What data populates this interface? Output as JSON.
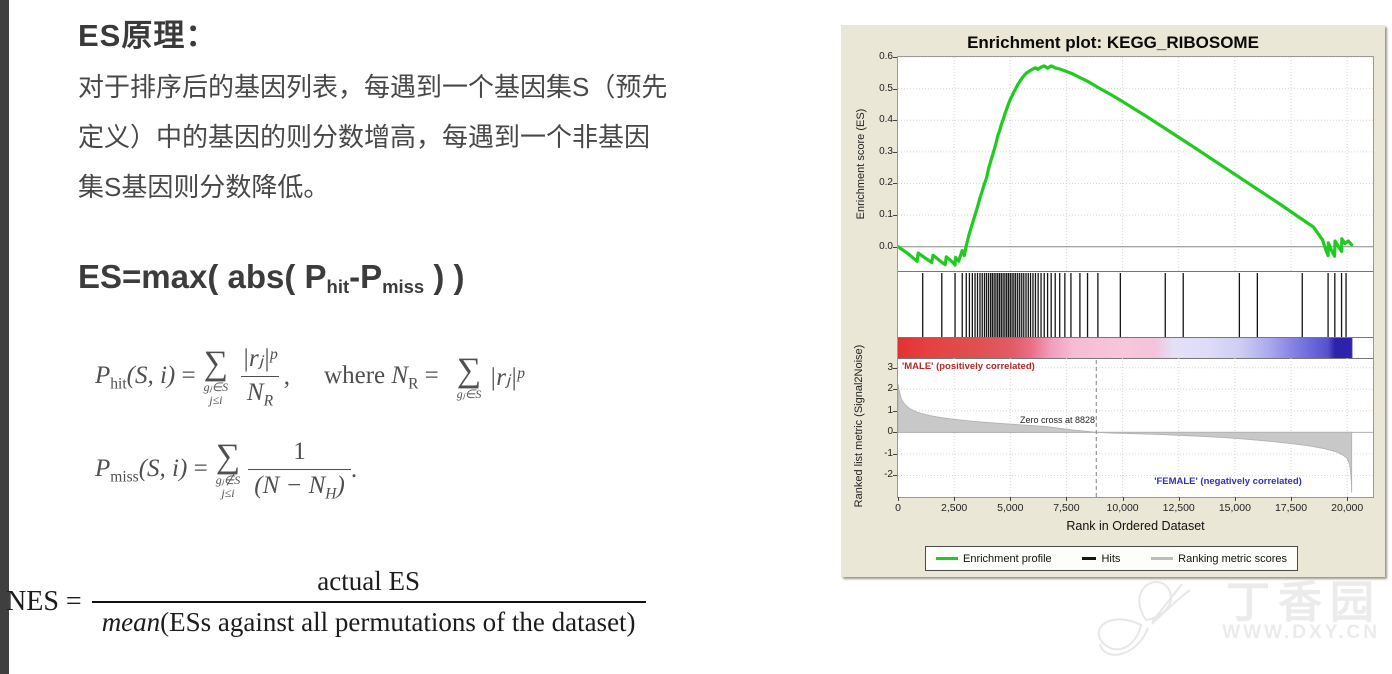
{
  "left": {
    "title": "ES原理：",
    "para_lines": [
      "对于排序后的基因列表，每遇到一个基因集S（预先",
      "定义）中的基因的则分数增高，每遇到一个非基因",
      "集S基因则分数降低。"
    ],
    "es_formula": {
      "p1": "ES=max( abs( P",
      "sub1": "hit",
      "p2": "-P",
      "sub2": "miss",
      "p3": " ) )"
    },
    "phit": {
      "p": "P",
      "sub": "hit",
      "args": "(S, i)",
      "eq": "=",
      "sigma": "∑",
      "sum_under1": "gⱼ∈S",
      "sum_under2": "j≤i",
      "num_base": "|rⱼ|",
      "num_sup": "p",
      "den_base": "N",
      "den_sub": "R",
      "comma": ",",
      "where": "where",
      "nr_base": "N",
      "nr_sub": "R",
      "eq2": "=",
      "sigma2": "∑",
      "sum2_under": "gⱼ∈S",
      "tail_base": "|rⱼ|",
      "tail_sup": "p"
    },
    "pmiss": {
      "p": "P",
      "sub": "miss",
      "args": "(S, i)",
      "eq": "=",
      "sigma": "∑",
      "sum_under1": "gⱼ∉S",
      "sum_under2": "j≤i",
      "num": "1",
      "den_a": "(N − N",
      "den_sub": "H",
      "den_b": ")",
      "period": "."
    },
    "nes": {
      "lhs": "NES =",
      "num": "actual ES",
      "den_italic": "mean",
      "den_rest": "(ESs against all permutations of the dataset)"
    }
  },
  "watermark": {
    "cn": "丁香园",
    "url": "WWW.DXY.CN"
  },
  "chart_data": {
    "type": "line",
    "title": "Enrichment plot: KEGG_RIBOSOME",
    "x_label": "Rank in Ordered Dataset",
    "x_max": 21150,
    "x_tick_ranks": [
      0,
      2500,
      5000,
      7500,
      10000,
      12500,
      15000,
      17500,
      20000
    ],
    "x_tick_labels": [
      "0",
      "2,500",
      "5,000",
      "7,500",
      "10,000",
      "12,500",
      "15,000",
      "17,500",
      "20,000"
    ],
    "es_panel": {
      "y_label": "Enrichment score (ES)",
      "ylim": [
        -0.08,
        0.6
      ],
      "y_tick_values": [
        0.6,
        0.5,
        0.4,
        0.3,
        0.2,
        0.1,
        0.0
      ],
      "y_tick_labels": [
        "0.6",
        "0.5",
        "0.4",
        "0.3",
        "0.2",
        "0.1",
        "0.0"
      ],
      "series": [
        [
          0,
          0
        ],
        [
          250,
          -0.012
        ],
        [
          500,
          -0.025
        ],
        [
          850,
          -0.046
        ],
        [
          900,
          -0.02
        ],
        [
          1150,
          -0.033
        ],
        [
          1500,
          -0.05
        ],
        [
          1560,
          -0.027
        ],
        [
          2000,
          -0.052
        ],
        [
          2100,
          -0.057
        ],
        [
          2150,
          -0.032
        ],
        [
          2450,
          -0.05
        ],
        [
          2540,
          -0.058
        ],
        [
          2560,
          -0.034
        ],
        [
          2700,
          -0.046
        ],
        [
          2860,
          -0.012
        ],
        [
          2950,
          -0.028
        ],
        [
          3040,
          0.004
        ],
        [
          3180,
          0.042
        ],
        [
          3310,
          0.072
        ],
        [
          3430,
          0.1
        ],
        [
          3540,
          0.126
        ],
        [
          3650,
          0.155
        ],
        [
          3750,
          0.176
        ],
        [
          3850,
          0.2
        ],
        [
          3940,
          0.217
        ],
        [
          4030,
          0.246
        ],
        [
          4120,
          0.268
        ],
        [
          4200,
          0.287
        ],
        [
          4280,
          0.306
        ],
        [
          4360,
          0.326
        ],
        [
          4440,
          0.35
        ],
        [
          4520,
          0.366
        ],
        [
          4600,
          0.386
        ],
        [
          4680,
          0.402
        ],
        [
          4760,
          0.42
        ],
        [
          4840,
          0.436
        ],
        [
          4920,
          0.452
        ],
        [
          5000,
          0.466
        ],
        [
          5080,
          0.478
        ],
        [
          5160,
          0.49
        ],
        [
          5240,
          0.5
        ],
        [
          5330,
          0.512
        ],
        [
          5420,
          0.522
        ],
        [
          5510,
          0.532
        ],
        [
          5600,
          0.54
        ],
        [
          5700,
          0.548
        ],
        [
          5800,
          0.553
        ],
        [
          5900,
          0.558
        ],
        [
          6010,
          0.562
        ],
        [
          6120,
          0.566
        ],
        [
          6240,
          0.561
        ],
        [
          6370,
          0.568
        ],
        [
          6510,
          0.572
        ],
        [
          6660,
          0.565
        ],
        [
          6820,
          0.572
        ],
        [
          7000,
          0.566
        ],
        [
          7200,
          0.562
        ],
        [
          7430,
          0.556
        ],
        [
          7700,
          0.549
        ],
        [
          8100,
          0.535
        ],
        [
          8440,
          0.523
        ],
        [
          8900,
          0.504
        ],
        [
          9500,
          0.48
        ],
        [
          10000,
          0.459
        ],
        [
          11000,
          0.415
        ],
        [
          12000,
          0.369
        ],
        [
          13000,
          0.323
        ],
        [
          14000,
          0.276
        ],
        [
          15000,
          0.229
        ],
        [
          16000,
          0.182
        ],
        [
          17000,
          0.135
        ],
        [
          18000,
          0.086
        ],
        [
          18500,
          0.062
        ],
        [
          18900,
          0.022
        ],
        [
          19050,
          -0.01
        ],
        [
          19150,
          -0.028
        ],
        [
          19160,
          0.012
        ],
        [
          19300,
          -0.012
        ],
        [
          19440,
          -0.03
        ],
        [
          19460,
          0.018
        ],
        [
          19600,
          0.002
        ],
        [
          19750,
          -0.015
        ],
        [
          19760,
          0.025
        ],
        [
          19900,
          0.01
        ],
        [
          20050,
          0.018
        ],
        [
          20200,
          0.006
        ]
      ]
    },
    "hits": {
      "ranks": [
        1100,
        1950,
        2540,
        2860,
        3040,
        3180,
        3310,
        3430,
        3540,
        3650,
        3750,
        3850,
        3940,
        4030,
        4120,
        4200,
        4280,
        4360,
        4440,
        4520,
        4600,
        4680,
        4760,
        4840,
        4920,
        5000,
        5080,
        5160,
        5240,
        5330,
        5420,
        5510,
        5600,
        5700,
        5800,
        5900,
        6010,
        6120,
        6240,
        6370,
        6510,
        6660,
        6820,
        7000,
        7200,
        7430,
        7700,
        8100,
        8440,
        8900,
        9900,
        11900,
        12700,
        15200,
        16000,
        18000,
        19150,
        19450,
        19750,
        19950
      ]
    },
    "metric_panel": {
      "y_label": "Ranked list metric (Signal2Noise)",
      "ylim": [
        -3.0,
        3.45
      ],
      "y_tick_values": [
        3,
        2,
        1,
        0,
        -1,
        -2
      ],
      "y_tick_labels": [
        "3",
        "2",
        "1",
        "0",
        "-1",
        "-2"
      ],
      "zero_cross_rank": 8828,
      "area": [
        [
          0,
          2.25
        ],
        [
          60,
          1.9
        ],
        [
          150,
          1.55
        ],
        [
          300,
          1.3
        ],
        [
          500,
          1.12
        ],
        [
          800,
          0.96
        ],
        [
          1200,
          0.83
        ],
        [
          1700,
          0.72
        ],
        [
          2300,
          0.63
        ],
        [
          3000,
          0.55
        ],
        [
          3800,
          0.47
        ],
        [
          4700,
          0.4
        ],
        [
          5600,
          0.34
        ],
        [
          6600,
          0.27
        ],
        [
          7200,
          0.19
        ],
        [
          7800,
          0.11
        ],
        [
          8400,
          0.05
        ],
        [
          8828,
          0
        ],
        [
          9500,
          -0.035
        ],
        [
          10500,
          -0.065
        ],
        [
          11500,
          -0.095
        ],
        [
          12500,
          -0.135
        ],
        [
          13500,
          -0.185
        ],
        [
          14500,
          -0.245
        ],
        [
          15500,
          -0.32
        ],
        [
          16500,
          -0.41
        ],
        [
          17500,
          -0.52
        ],
        [
          18300,
          -0.63
        ],
        [
          19000,
          -0.76
        ],
        [
          19500,
          -0.9
        ],
        [
          19800,
          -1.05
        ],
        [
          20000,
          -1.22
        ],
        [
          20100,
          -1.45
        ],
        [
          20150,
          -1.8
        ],
        [
          20180,
          -2.2
        ],
        [
          20200,
          -2.8
        ]
      ]
    },
    "annotations": {
      "male": "'MALE' (positively correlated)",
      "female": "'FEMALE' (negatively correlated)",
      "zero_cross": "Zero cross at 8828"
    },
    "legend": [
      "Enrichment profile",
      "Hits",
      "Ranking metric scores"
    ],
    "colors": {
      "profile": "#1ecb1e",
      "hits": "#141414",
      "metric_swatch": "#bcbcbc",
      "area_fill": "#c8c8c8",
      "male_text": "#b22a2a",
      "female_text": "#3232b4",
      "panel_bg": "#EAE7D6"
    }
  }
}
